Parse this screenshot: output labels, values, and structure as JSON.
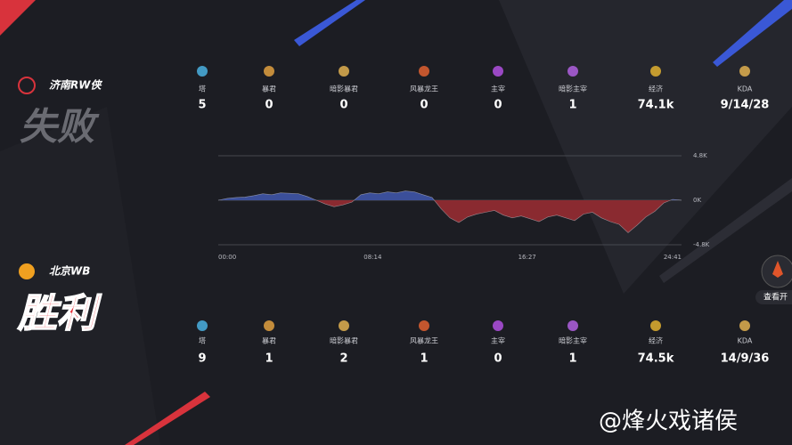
{
  "teams": [
    {
      "name": "济南RW侠",
      "result": "失败",
      "stats": [
        {
          "label": "塔",
          "value": 5
        },
        {
          "label": "暴君",
          "value": 0
        },
        {
          "label": "暗影暴君",
          "value": 0
        },
        {
          "label": "风暴龙王",
          "value": 0
        },
        {
          "label": "主宰",
          "value": 0
        },
        {
          "label": "暗影主宰",
          "value": 1
        },
        {
          "label": "经济",
          "value": "74.1k"
        },
        {
          "label": "KDA",
          "value": "9/14/28"
        }
      ]
    },
    {
      "name": "北京WB",
      "result": "胜利",
      "stats": [
        {
          "label": "塔",
          "value": 9
        },
        {
          "label": "暴君",
          "value": 1
        },
        {
          "label": "暗影暴君",
          "value": 2
        },
        {
          "label": "风暴龙王",
          "value": 1
        },
        {
          "label": "主宰",
          "value": 0
        },
        {
          "label": "暗影主宰",
          "value": 1
        },
        {
          "label": "经济",
          "value": "74.5k"
        },
        {
          "label": "KDA",
          "value": "14/9/36"
        }
      ]
    }
  ],
  "gold_chart": {
    "type": "area",
    "ylim": [
      -4800,
      4800
    ],
    "yticks": [
      {
        "value": 4800,
        "label": "4.8K"
      },
      {
        "value": 0,
        "label": "0K"
      },
      {
        "value": -4800,
        "label": "-4.8K"
      }
    ],
    "xticks": [
      "00:00",
      "08:14",
      "16:27",
      "24:41"
    ],
    "values": [
      0,
      200,
      300,
      350,
      500,
      700,
      600,
      800,
      750,
      700,
      400,
      0,
      -400,
      -700,
      -500,
      -200,
      600,
      800,
      700,
      900,
      800,
      1000,
      900,
      600,
      300,
      -900,
      -1900,
      -2400,
      -1800,
      -1500,
      -1300,
      -1100,
      -1600,
      -1900,
      -1700,
      -2000,
      -2300,
      -1800,
      -1600,
      -1900,
      -2200,
      -1500,
      -1300,
      -1900,
      -2300,
      -2600,
      -3500,
      -2700,
      -1800,
      -1200,
      -300,
      100,
      0
    ],
    "colors": {
      "positive": "#3b4f9a",
      "negative": "#8a2a30"
    }
  },
  "side_button": "查看开",
  "watermark": "@烽火戏诸侯"
}
